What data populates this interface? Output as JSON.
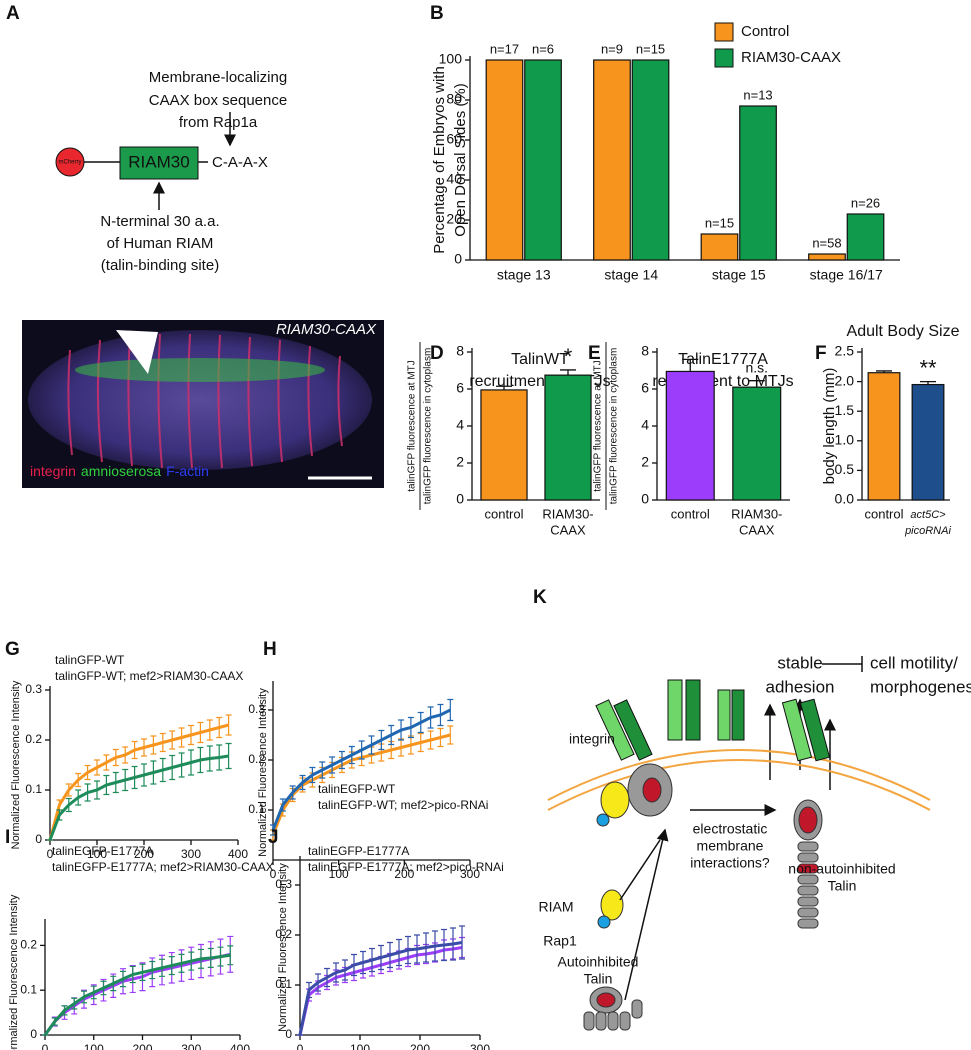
{
  "diagram_a": {
    "panel": "A",
    "circle_label": "mCherry",
    "box_label": "RIAM30",
    "tail_label": "C-A-A-X",
    "top_note": [
      "Membrane-localizing",
      "CAAX box sequence",
      "from Rap1a"
    ],
    "bottom_note": [
      "N-terminal 30 a.a.",
      "of Human RIAM",
      "(talin-binding site)"
    ]
  },
  "image_c": {
    "panel": "C",
    "corner_label": "RIAM30-CAAX",
    "stains": [
      {
        "name": "integrin",
        "color": "#e8204a"
      },
      {
        "name": "amnioserosa",
        "color": "#2fd13c"
      },
      {
        "name": "F-actin",
        "color": "#2b3cf0"
      }
    ]
  },
  "diagram_k": {
    "panel": "K",
    "outcome": [
      "stable",
      "adhesion"
    ],
    "inhibited": [
      "cell motility/",
      "morphogenesis"
    ],
    "receptor": "integrin",
    "mechanism": [
      "electrostatic",
      "membrane",
      "interactions?"
    ],
    "active_talin": [
      "non-autoinhibited",
      "Talin"
    ],
    "adaptor": "RIAM",
    "gtpase": "Rap1",
    "inactive_talin": [
      "Autoinhibited",
      "Talin"
    ]
  },
  "chart_data": [
    {
      "type": "bar",
      "panel": "B",
      "ylabel": [
        "Percentage of Embryos with",
        "Open Dorsal Sides (%)"
      ],
      "categories": [
        "stage 13",
        "stage 14",
        "stage 15",
        "stage 16/17"
      ],
      "series": [
        {
          "name": "Control",
          "color": "#f7941d",
          "values": [
            100,
            100,
            13,
            3
          ],
          "sample_sizes": [
            "n=17",
            "n=9",
            "n=15",
            "n=58"
          ]
        },
        {
          "name": "RIAM30-CAAX",
          "color": "#109a4c",
          "values": [
            100,
            100,
            77,
            23
          ],
          "sample_sizes": [
            "n=6",
            "n=15",
            "n=13",
            "n=26"
          ]
        }
      ],
      "ylim": [
        0,
        100
      ],
      "yticks": [
        0,
        20,
        40,
        60,
        80,
        100
      ],
      "legend": "top-right"
    },
    {
      "type": "bar",
      "panel": "D",
      "title": [
        "TalinWT",
        "recruitment to MTJs"
      ],
      "ylabel": [
        "talinGFP fluorescence at MTJ",
        "talinGFP fluorescence in cytoplasm"
      ],
      "categories": [
        [
          "control"
        ],
        [
          "RIAM30-",
          "CAAX"
        ]
      ],
      "values": [
        5.95,
        6.75
      ],
      "errors": [
        0.2,
        0.28
      ],
      "colors": [
        "#f7941d",
        "#109a4c"
      ],
      "significance": [
        null,
        "*"
      ],
      "ylim": [
        0,
        8
      ],
      "yticks": [
        0,
        2,
        4,
        6,
        8
      ]
    },
    {
      "type": "bar",
      "panel": "E",
      "title": [
        "TalinE1777A",
        "recruitment to MTJs"
      ],
      "ylabel": [
        "talinGFP fluorescence at MTJ",
        "talinGFP fluorescence in cytoplasm"
      ],
      "categories": [
        [
          "control"
        ],
        [
          "RIAM30-",
          "CAAX"
        ]
      ],
      "values": [
        6.95,
        6.1
      ],
      "errors": [
        0.65,
        0.35
      ],
      "colors": [
        "#9b3dfa",
        "#109a4c"
      ],
      "significance": [
        null,
        "n.s."
      ],
      "ylim": [
        0,
        8
      ],
      "yticks": [
        0,
        2,
        4,
        6,
        8
      ]
    },
    {
      "type": "bar",
      "panel": "F",
      "title": [
        "Adult Body Size"
      ],
      "ylabel": "body length (mm)",
      "categories": [
        [
          "control"
        ],
        [
          "act5C>",
          "picoRNAi"
        ]
      ],
      "values": [
        2.15,
        1.95
      ],
      "errors": [
        0.03,
        0.05
      ],
      "colors": [
        "#f7941d",
        "#1f4e8c"
      ],
      "significance": [
        null,
        "**"
      ],
      "ylim": [
        0,
        2.5
      ],
      "yticks": [
        {
          "value": 0,
          "label": "0.0"
        },
        {
          "value": 0.5,
          "label": "0.5"
        },
        {
          "value": 1,
          "label": "1.0"
        },
        {
          "value": 1.5,
          "label": "1.5"
        },
        {
          "value": 2,
          "label": "2.0"
        },
        {
          "value": 2.5,
          "label": "2.5"
        }
      ]
    },
    {
      "type": "line",
      "panel": "G",
      "ylabel": "Normalized Fluorescence Intensity",
      "x": [
        0,
        20,
        40,
        60,
        80,
        100,
        120,
        140,
        160,
        180,
        200,
        220,
        240,
        260,
        280,
        300,
        320,
        340,
        360,
        380
      ],
      "series": [
        {
          "name": "talinGFP-WT",
          "color": "#f7941d",
          "values": [
            0,
            0.07,
            0.1,
            0.12,
            0.135,
            0.145,
            0.155,
            0.165,
            0.17,
            0.18,
            0.185,
            0.19,
            0.195,
            0.2,
            0.205,
            0.21,
            0.215,
            0.22,
            0.225,
            0.23
          ],
          "errors": [
            0,
            0.01,
            0.012,
            0.013,
            0.014,
            0.015,
            0.015,
            0.016,
            0.016,
            0.017,
            0.017,
            0.018,
            0.018,
            0.018,
            0.019,
            0.019,
            0.02,
            0.02,
            0.02,
            0.02
          ]
        },
        {
          "name": "talinGFP-WT; mef2>RIAM30-CAAX",
          "color": "#1e8c5a",
          "values": [
            0,
            0.05,
            0.07,
            0.085,
            0.095,
            0.1,
            0.11,
            0.115,
            0.12,
            0.125,
            0.13,
            0.135,
            0.14,
            0.145,
            0.15,
            0.155,
            0.16,
            0.163,
            0.165,
            0.168
          ],
          "errors": [
            0,
            0.01,
            0.013,
            0.015,
            0.017,
            0.018,
            0.019,
            0.02,
            0.021,
            0.022,
            0.022,
            0.023,
            0.023,
            0.024,
            0.024,
            0.025,
            0.025,
            0.025,
            0.025,
            0.025
          ]
        }
      ],
      "xlim": [
        0,
        400
      ],
      "xticks": [
        0,
        100,
        200,
        300,
        400
      ],
      "ylim": [
        0,
        0.3
      ],
      "yticks": [
        0,
        0.1,
        0.2,
        0.3
      ]
    },
    {
      "type": "line",
      "panel": "H",
      "ylabel": "Normalized Fluorescence Intensity",
      "x": [
        0,
        15,
        30,
        45,
        60,
        75,
        90,
        105,
        120,
        135,
        150,
        165,
        180,
        195,
        210,
        225,
        240,
        255,
        270
      ],
      "series": [
        {
          "name": "talinEGFP-WT",
          "color": "#f7941d",
          "values": [
            0.05,
            0.1,
            0.13,
            0.15,
            0.16,
            0.17,
            0.18,
            0.19,
            0.2,
            0.205,
            0.21,
            0.215,
            0.22,
            0.225,
            0.23,
            0.235,
            0.24,
            0.245,
            0.25
          ],
          "errors": [
            0.01,
            0.012,
            0.013,
            0.014,
            0.014,
            0.015,
            0.015,
            0.015,
            0.016,
            0.016,
            0.016,
            0.017,
            0.017,
            0.017,
            0.018,
            0.018,
            0.018,
            0.018,
            0.018
          ]
        },
        {
          "name": "talinEGFP-WT; mef2>pico-RNAi",
          "color": "#2066b0",
          "values": [
            0.06,
            0.11,
            0.135,
            0.155,
            0.17,
            0.18,
            0.19,
            0.2,
            0.21,
            0.22,
            0.23,
            0.24,
            0.25,
            0.26,
            0.265,
            0.275,
            0.285,
            0.29,
            0.3
          ],
          "errors": [
            0.01,
            0.012,
            0.013,
            0.014,
            0.015,
            0.016,
            0.016,
            0.017,
            0.017,
            0.018,
            0.018,
            0.019,
            0.019,
            0.02,
            0.02,
            0.02,
            0.021,
            0.021,
            0.021
          ]
        }
      ],
      "xlim": [
        0,
        300
      ],
      "xticks": [
        0,
        100,
        200,
        300
      ],
      "ylim": [
        0,
        0.35
      ],
      "yticks": [
        0.1,
        0.2,
        0.3
      ]
    },
    {
      "type": "line",
      "panel": "I",
      "ylabel": "Normalized Fluorescence Intensity",
      "x": [
        0,
        20,
        40,
        60,
        80,
        100,
        120,
        140,
        160,
        180,
        200,
        220,
        240,
        260,
        280,
        300,
        320,
        340,
        360,
        380
      ],
      "series": [
        {
          "name": "talinEGFP-E1777A",
          "color": "#9b3dfa",
          "values": [
            0,
            0.03,
            0.05,
            0.065,
            0.08,
            0.09,
            0.1,
            0.11,
            0.12,
            0.125,
            0.13,
            0.14,
            0.145,
            0.15,
            0.155,
            0.16,
            0.165,
            0.17,
            0.175,
            0.18
          ],
          "errors": [
            0,
            0.01,
            0.015,
            0.018,
            0.02,
            0.022,
            0.024,
            0.026,
            0.028,
            0.03,
            0.031,
            0.032,
            0.033,
            0.034,
            0.035,
            0.036,
            0.037,
            0.038,
            0.039,
            0.04
          ]
        },
        {
          "name": "talinEGFP-E1777A; mef2>RIAM30-CAAX",
          "color": "#1e8c5a",
          "values": [
            0,
            0.03,
            0.055,
            0.07,
            0.085,
            0.095,
            0.105,
            0.115,
            0.125,
            0.135,
            0.14,
            0.145,
            0.15,
            0.155,
            0.16,
            0.165,
            0.17,
            0.172,
            0.175,
            0.178
          ],
          "errors": [
            0,
            0.008,
            0.01,
            0.012,
            0.013,
            0.014,
            0.015,
            0.016,
            0.017,
            0.018,
            0.018,
            0.019,
            0.019,
            0.02,
            0.02,
            0.02,
            0.021,
            0.021,
            0.021,
            0.021
          ]
        }
      ],
      "xlim": [
        0,
        400
      ],
      "xticks": [
        0,
        100,
        200,
        300,
        400
      ],
      "ylim": [
        0,
        0.25
      ],
      "yticks": [
        0,
        0.1,
        0.2
      ]
    },
    {
      "type": "line",
      "panel": "J",
      "ylabel": "Normalized Fluorescence Intensity",
      "x": [
        0,
        15,
        30,
        45,
        60,
        75,
        90,
        105,
        120,
        135,
        150,
        165,
        180,
        195,
        210,
        225,
        240,
        255,
        270
      ],
      "series": [
        {
          "name": "talinEGFP-E1777A",
          "color": "#9b3dfa",
          "values": [
            0,
            0.08,
            0.095,
            0.105,
            0.115,
            0.12,
            0.125,
            0.13,
            0.135,
            0.14,
            0.145,
            0.15,
            0.155,
            0.16,
            0.162,
            0.165,
            0.17,
            0.172,
            0.175
          ],
          "errors": [
            0,
            0.012,
            0.013,
            0.014,
            0.015,
            0.015,
            0.016,
            0.016,
            0.017,
            0.017,
            0.018,
            0.018,
            0.018,
            0.019,
            0.019,
            0.019,
            0.02,
            0.02,
            0.02
          ]
        },
        {
          "name": "talinEGFP-E1777A; mef2>pico-RNAi",
          "color": "#3b4ba8",
          "values": [
            0,
            0.09,
            0.105,
            0.115,
            0.125,
            0.13,
            0.14,
            0.145,
            0.15,
            0.155,
            0.16,
            0.165,
            0.17,
            0.172,
            0.175,
            0.178,
            0.18,
            0.182,
            0.185
          ],
          "errors": [
            0,
            0.015,
            0.017,
            0.018,
            0.019,
            0.02,
            0.021,
            0.022,
            0.023,
            0.024,
            0.025,
            0.026,
            0.027,
            0.028,
            0.029,
            0.03,
            0.031,
            0.032,
            0.033
          ]
        }
      ],
      "xlim": [
        0,
        300
      ],
      "xticks": [
        0,
        100,
        200,
        300
      ],
      "ylim": [
        0,
        0.35
      ],
      "yticks": [
        0,
        0.1,
        0.2,
        0.3
      ]
    }
  ]
}
